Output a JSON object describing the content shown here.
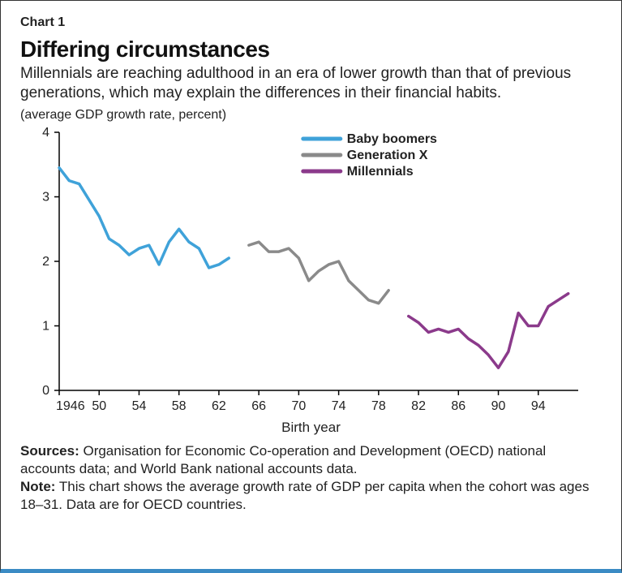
{
  "chart": {
    "number_label": "Chart 1",
    "title": "Differing circumstances",
    "subtitle": "Millennials are reaching adulthood in an era of lower growth than that of previous generations, which may explain the differences in their financial habits.",
    "unit_label": "(average GDP growth rate, percent)",
    "xlabel": "Birth year",
    "sources_label": "Sources:",
    "sources_text": " Organisation for Economic Co-operation and Development (OECD) national accounts data; and World Bank national accounts data.",
    "note_label": "Note:",
    "note_text": " This chart shows the average growth rate of GDP per capita when the cohort was ages 18–31. Data are for OECD countries.",
    "type": "line",
    "background_color": "#ffffff",
    "border_color": "#333333",
    "bottom_border_color": "#3b8bc4",
    "line_width": 3.5,
    "axis_color": "#000000",
    "tick_color": "#000000",
    "tick_font_size": 16,
    "label_font_size": 17,
    "title_font_size": 28,
    "subtitle_font_size": 19,
    "xlim": [
      1946,
      1998
    ],
    "ylim": [
      0,
      4
    ],
    "xtick_start": 1946,
    "xtick_step": 4,
    "xtick_end": 94,
    "ytick_step": 1,
    "xticks": [
      1946,
      1950,
      1954,
      1958,
      1962,
      1966,
      1970,
      1974,
      1978,
      1982,
      1986,
      1990,
      1994
    ],
    "xtick_labels": [
      "1946",
      "50",
      "54",
      "58",
      "62",
      "66",
      "70",
      "74",
      "78",
      "82",
      "86",
      "90",
      "94"
    ],
    "yticks": [
      0,
      1,
      2,
      3,
      4
    ],
    "ytick_labels": [
      "0",
      "1",
      "2",
      "3",
      "4"
    ],
    "legend": {
      "position": "top-right-inside",
      "items": [
        {
          "label": "Baby boomers",
          "color": "#3fa2d9"
        },
        {
          "label": "Generation X",
          "color": "#8a8a8a"
        },
        {
          "label": "Millennials",
          "color": "#8b3a8b"
        }
      ]
    },
    "series": [
      {
        "name": "Baby boomers",
        "color": "#3fa2d9",
        "x": [
          1946,
          1947,
          1948,
          1949,
          1950,
          1951,
          1952,
          1953,
          1954,
          1955,
          1956,
          1957,
          1958,
          1959,
          1960,
          1961,
          1962,
          1963
        ],
        "y": [
          3.45,
          3.25,
          3.2,
          2.95,
          2.7,
          2.35,
          2.25,
          2.1,
          2.2,
          2.25,
          1.95,
          2.3,
          2.5,
          2.3,
          2.2,
          1.9,
          1.95,
          2.05
        ]
      },
      {
        "name": "Generation X",
        "color": "#8a8a8a",
        "x": [
          1965,
          1966,
          1967,
          1968,
          1969,
          1970,
          1971,
          1972,
          1973,
          1974,
          1975,
          1976,
          1977,
          1978,
          1979
        ],
        "y": [
          2.25,
          2.3,
          2.15,
          2.15,
          2.2,
          2.05,
          1.7,
          1.85,
          1.95,
          2.0,
          1.7,
          1.55,
          1.4,
          1.35,
          1.55
        ]
      },
      {
        "name": "Millennials",
        "color": "#8b3a8b",
        "x": [
          1981,
          1982,
          1983,
          1984,
          1985,
          1986,
          1987,
          1988,
          1989,
          1990,
          1991,
          1992,
          1993,
          1994,
          1995,
          1996,
          1997
        ],
        "y": [
          1.15,
          1.05,
          0.9,
          0.95,
          0.9,
          0.95,
          0.8,
          0.7,
          0.55,
          0.35,
          0.6,
          1.2,
          1.0,
          1.0,
          1.3,
          1.4,
          1.5
        ]
      }
    ]
  }
}
